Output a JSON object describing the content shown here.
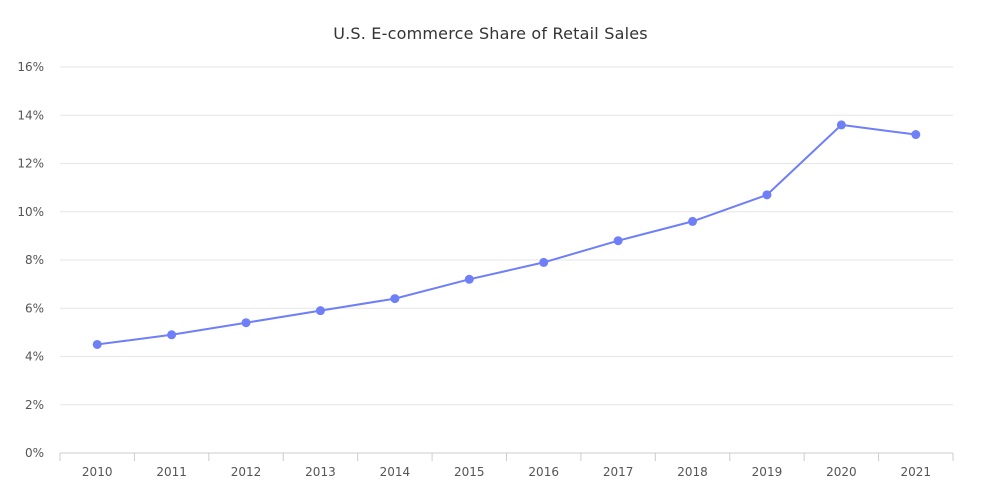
{
  "chart_data": {
    "type": "line",
    "title": "U.S. E-commerce Share of Retail Sales",
    "xlabel": "",
    "ylabel": "",
    "x": [
      "2010",
      "2011",
      "2012",
      "2013",
      "2014",
      "2015",
      "2016",
      "2017",
      "2018",
      "2019",
      "2020",
      "2021"
    ],
    "series": [
      {
        "values": [
          4.5,
          4.9,
          5.4,
          5.9,
          6.4,
          7.2,
          7.9,
          8.8,
          9.6,
          10.7,
          13.6,
          13.2
        ],
        "color": "#6f7ff7"
      }
    ],
    "ylim": [
      0,
      16
    ],
    "y_ticks": [
      0,
      2,
      4,
      6,
      8,
      10,
      12,
      14,
      16
    ],
    "y_tick_labels": [
      "0%",
      "2%",
      "4%",
      "6%",
      "8%",
      "10%",
      "12%",
      "14%",
      "16%"
    ],
    "grid": true,
    "legend": "none"
  },
  "colors": {
    "series": "#6f7ff7",
    "grid": "#e6e6e6",
    "axis": "#cccccc",
    "text": "#555555",
    "title": "#333333"
  }
}
